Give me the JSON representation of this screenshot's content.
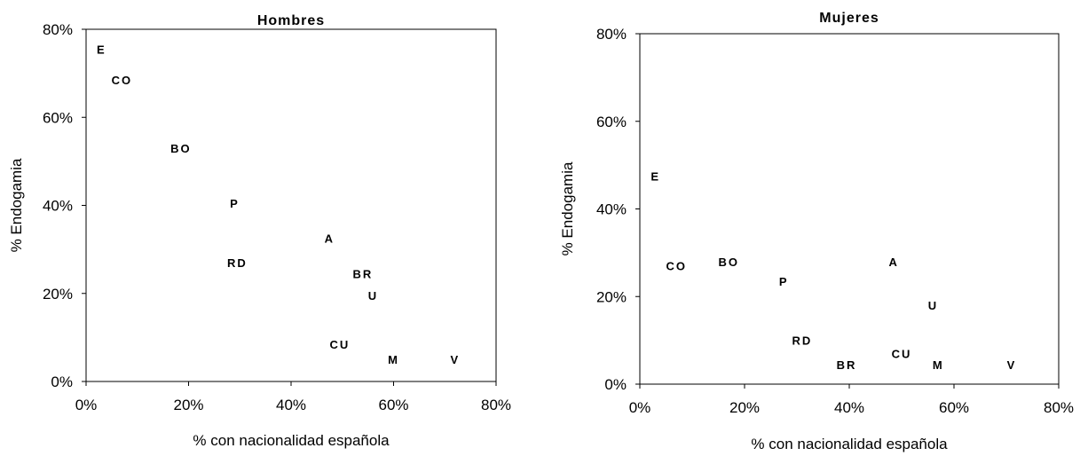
{
  "chart_data": [
    {
      "type": "scatter",
      "title": "Hombres",
      "xlabel": "% con nacionalidad española",
      "ylabel": "% Endogamia",
      "xlim": [
        0,
        80
      ],
      "ylim": [
        0,
        80
      ],
      "x_ticks": [
        "0%",
        "20%",
        "40%",
        "60%",
        "80%"
      ],
      "y_ticks": [
        "0%",
        "20%",
        "40%",
        "60%",
        "80%"
      ],
      "grid": false,
      "points": [
        {
          "label": "E",
          "x": 3,
          "y": 75.5
        },
        {
          "label": "CO",
          "x": 7,
          "y": 68.5
        },
        {
          "label": "BO",
          "x": 18.5,
          "y": 53
        },
        {
          "label": "P",
          "x": 29,
          "y": 40.5
        },
        {
          "label": "RD",
          "x": 29.5,
          "y": 27
        },
        {
          "label": "A",
          "x": 47.5,
          "y": 32.5
        },
        {
          "label": "BR",
          "x": 54,
          "y": 24.5
        },
        {
          "label": "U",
          "x": 56,
          "y": 19.5
        },
        {
          "label": "CU",
          "x": 49.5,
          "y": 8.5
        },
        {
          "label": "M",
          "x": 60,
          "y": 5
        },
        {
          "label": "V",
          "x": 72,
          "y": 5
        }
      ]
    },
    {
      "type": "scatter",
      "title": "Mujeres",
      "xlabel": "% con nacionalidad española",
      "ylabel": "% Endogamia",
      "xlim": [
        0,
        80
      ],
      "ylim": [
        0,
        80
      ],
      "x_ticks": [
        "0%",
        "20%",
        "40%",
        "60%",
        "80%"
      ],
      "y_ticks": [
        "0%",
        "20%",
        "40%",
        "60%",
        "80%"
      ],
      "grid": false,
      "points": [
        {
          "label": "E",
          "x": 3,
          "y": 47.5
        },
        {
          "label": "CO",
          "x": 7,
          "y": 27
        },
        {
          "label": "BO",
          "x": 17,
          "y": 28
        },
        {
          "label": "P",
          "x": 27.5,
          "y": 23.5
        },
        {
          "label": "RD",
          "x": 31,
          "y": 10
        },
        {
          "label": "A",
          "x": 48.5,
          "y": 28
        },
        {
          "label": "BR",
          "x": 39.5,
          "y": 4.5
        },
        {
          "label": "U",
          "x": 56,
          "y": 18
        },
        {
          "label": "CU",
          "x": 50,
          "y": 7
        },
        {
          "label": "M",
          "x": 57,
          "y": 4.5
        },
        {
          "label": "V",
          "x": 71,
          "y": 4.5
        }
      ]
    }
  ]
}
